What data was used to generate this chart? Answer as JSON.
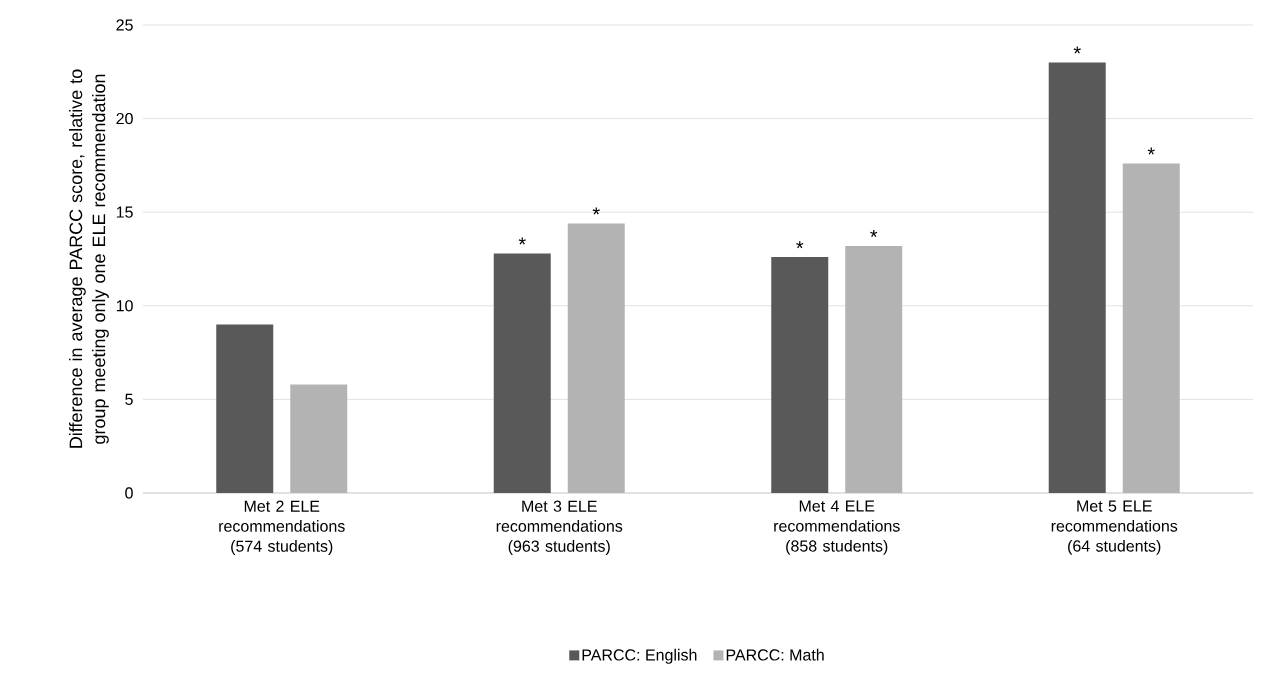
{
  "chart_data": {
    "type": "bar",
    "ylabel": "Difference in average PARCC score, relative to group meeting only one ELE recommendation",
    "categories": [
      "Met 2 ELE recommendations (574 students)",
      "Met 3 ELE recommendations (963 students)",
      "Met 4 ELE recommendations (858 students)",
      "Met 5 ELE recommendations (64 students)"
    ],
    "series": [
      {
        "name": "PARCC: English",
        "color": "#595959",
        "values": [
          9.0,
          12.8,
          12.6,
          23.0
        ],
        "value_labels": [
          null,
          "*",
          "*",
          "*"
        ]
      },
      {
        "name": "PARCC: Math",
        "color": "#b3b3b3",
        "values": [
          5.8,
          14.4,
          13.2,
          17.6
        ],
        "value_labels": [
          null,
          "*",
          "*",
          "*"
        ]
      }
    ],
    "ylim": [
      0,
      25
    ],
    "yticks": [
      0,
      5,
      10,
      15,
      20,
      25
    ],
    "grid": "y",
    "legend": "bottom"
  }
}
